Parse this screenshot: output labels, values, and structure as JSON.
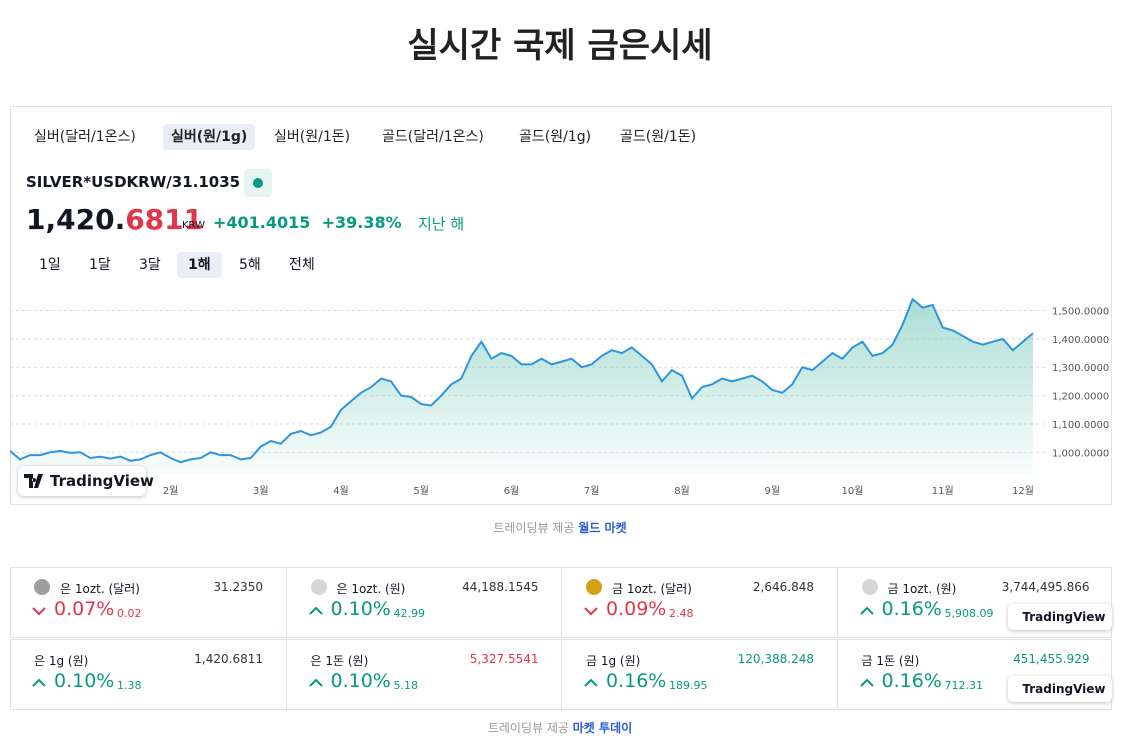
{
  "title": "실시간 국제 금은시세",
  "tabs": {
    "items": [
      "실버(달러/1온스)",
      "실버(원/1g)",
      "실버(원/1돈)",
      "골드(달러/1온스)",
      "골드(원/1g)",
      "골드(원/1돈)"
    ],
    "active": 1
  },
  "quote": {
    "symbol": "SILVER*USDKRW/31.1035",
    "price_main": "1,420.",
    "price_tail": "6811",
    "currency": "KRW",
    "change": "+401.4015",
    "change_pct": "+39.38%",
    "period": "지난 해"
  },
  "ranges": {
    "items": [
      "1일",
      "1달",
      "3달",
      "1해",
      "5해",
      "전체"
    ],
    "active": 3
  },
  "logo": "TradingView",
  "credit": {
    "text": "트레이딩뷰 제공",
    "link": "월드 마켓"
  },
  "tickers": [
    {
      "name": "은 1ozt. (달러)",
      "price": "31.2350",
      "pct": "0.07%",
      "abs": "0.02",
      "direction": "down",
      "icon_color": "#9e9e9e",
      "price_color": "#333333"
    },
    {
      "name": "은 1ozt. (원)",
      "price": "44,188.1545",
      "pct": "0.10%",
      "abs": "42.99",
      "direction": "up",
      "icon_color": "#d6d6d6",
      "price_color": "#333333"
    },
    {
      "name": "금 1ozt. (달러)",
      "price": "2,646.848",
      "pct": "0.09%",
      "abs": "2.48",
      "direction": "down",
      "icon_color": "#d4a017",
      "price_color": "#333333"
    },
    {
      "name": "금 1ozt. (원)",
      "price": "3,744,495.866",
      "pct": "0.16%",
      "abs": "5,908.09",
      "direction": "up",
      "icon_color": "#d6d6d6",
      "price_color": "#333333"
    },
    {
      "name": "은 1g (원)",
      "price": "1,420.6811",
      "pct": "0.10%",
      "abs": "1.38",
      "direction": "up",
      "price_color": "#333333"
    },
    {
      "name": "은 1돈 (원)",
      "price": "5,327.5541",
      "pct": "0.10%",
      "abs": "5.18",
      "direction": "up",
      "price_color": "#e0364a"
    },
    {
      "name": "금 1g (원)",
      "price": "120,388.248",
      "pct": "0.16%",
      "abs": "189.95",
      "direction": "up",
      "price_color": "#089981"
    },
    {
      "name": "금 1돈 (원)",
      "price": "451,455.929",
      "pct": "0.16%",
      "abs": "712.31",
      "direction": "up",
      "price_color": "#089981"
    }
  ],
  "credit2": {
    "text": "트레이딩뷰 제공",
    "link": "마켓 투데이"
  },
  "chart_data": {
    "type": "area",
    "color": "#2e95dd",
    "area_color": "#8fd3c5",
    "categories": [
      null,
      null,
      null,
      null,
      null,
      null,
      null,
      null,
      null,
      null,
      null,
      null,
      null,
      null,
      null,
      null,
      "2월",
      null,
      null,
      null,
      null,
      null,
      null,
      null,
      null,
      "3월",
      null,
      null,
      null,
      null,
      null,
      null,
      null,
      "4월",
      null,
      null,
      null,
      null,
      null,
      null,
      null,
      "5월",
      null,
      null,
      null,
      null,
      null,
      null,
      null,
      null,
      "6월",
      null,
      null,
      null,
      null,
      null,
      null,
      null,
      "7월",
      null,
      null,
      null,
      null,
      null,
      null,
      null,
      null,
      "8월",
      null,
      null,
      null,
      null,
      null,
      null,
      null,
      null,
      "9월",
      null,
      null,
      null,
      null,
      null,
      null,
      null,
      "10월",
      null,
      null,
      null,
      null,
      null,
      null,
      null,
      null,
      "11월",
      null,
      null,
      null,
      null,
      null,
      null,
      null,
      "12월",
      null
    ],
    "values": [
      1005,
      975,
      990,
      990,
      1000,
      1005,
      998,
      1000,
      980,
      985,
      978,
      985,
      970,
      975,
      990,
      1000,
      980,
      965,
      975,
      980,
      1000,
      990,
      990,
      975,
      980,
      1020,
      1040,
      1030,
      1065,
      1075,
      1060,
      1070,
      1090,
      1150,
      1180,
      1210,
      1230,
      1260,
      1250,
      1200,
      1195,
      1170,
      1165,
      1200,
      1240,
      1260,
      1340,
      1390,
      1330,
      1350,
      1340,
      1310,
      1310,
      1330,
      1310,
      1320,
      1330,
      1300,
      1310,
      1340,
      1360,
      1350,
      1370,
      1340,
      1310,
      1250,
      1290,
      1270,
      1190,
      1230,
      1240,
      1260,
      1250,
      1260,
      1270,
      1250,
      1220,
      1210,
      1240,
      1300,
      1290,
      1320,
      1350,
      1330,
      1370,
      1390,
      1340,
      1350,
      1380,
      1450,
      1540,
      1510,
      1520,
      1440,
      1430,
      1410,
      1390,
      1380,
      1390,
      1400,
      1360,
      1390,
      1420
    ],
    "ylim": [
      920,
      1590
    ],
    "yticks": [
      {
        "value": 1000,
        "label": "1,000.0000"
      },
      {
        "value": 1100,
        "label": "1,100.0000"
      },
      {
        "value": 1200,
        "label": "1,200.0000"
      },
      {
        "value": 1300,
        "label": "1,300.0000"
      },
      {
        "value": 1400,
        "label": "1,400.0000"
      },
      {
        "value": 1500,
        "label": "1,500.0000"
      }
    ],
    "grid": true
  }
}
